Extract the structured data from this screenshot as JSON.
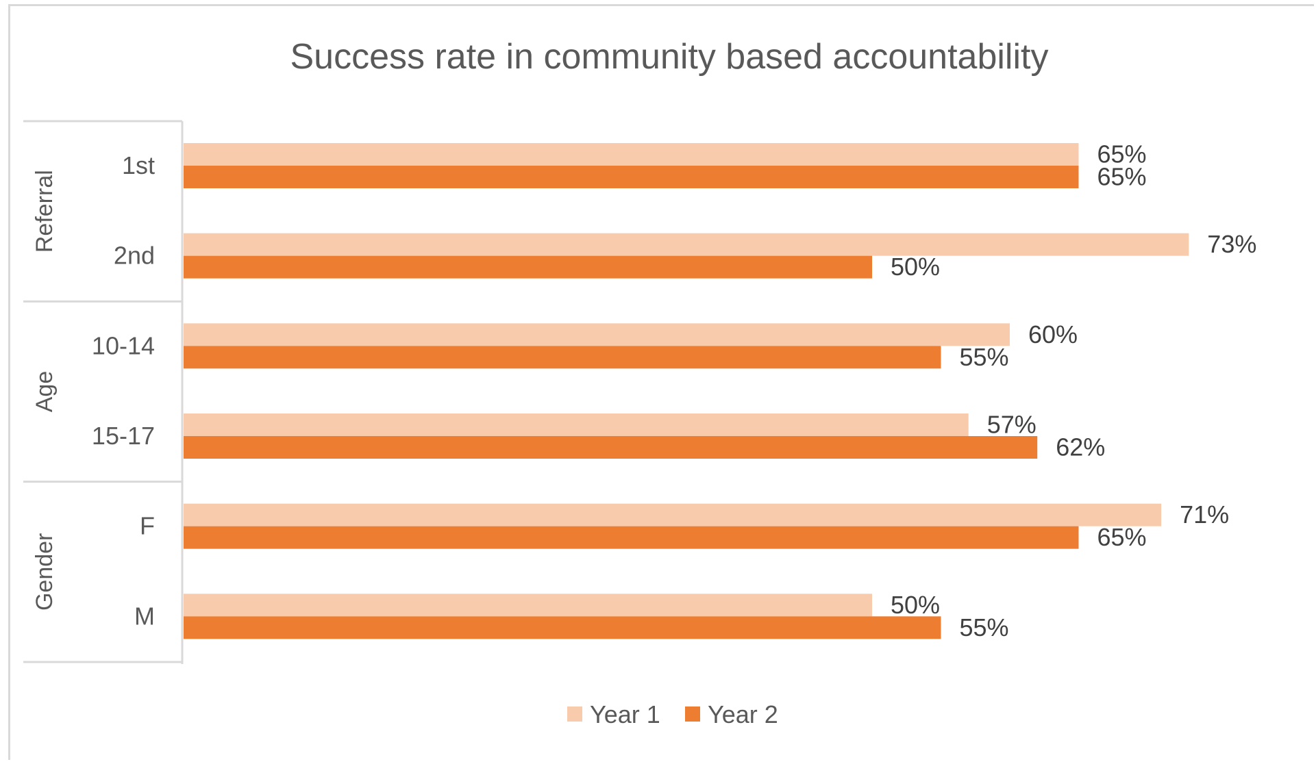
{
  "chart_data": {
    "type": "bar",
    "orientation": "horizontal",
    "title": "Success rate in community based accountability",
    "xlabel": "",
    "ylabel": "",
    "xlim": [
      0,
      80
    ],
    "grid": false,
    "legend_position": "bottom",
    "groups": [
      {
        "label": "Referral",
        "categories": [
          "1st",
          "2nd"
        ]
      },
      {
        "label": "Age",
        "categories": [
          "10-14",
          "15-17"
        ]
      },
      {
        "label": "Gender",
        "categories": [
          "F",
          "M"
        ]
      }
    ],
    "categories": [
      "1st",
      "2nd",
      "10-14",
      "15-17",
      "F",
      "M"
    ],
    "series": [
      {
        "name": "Year 1",
        "color": "#f8cbad",
        "values": [
          65,
          73,
          60,
          57,
          71,
          50
        ],
        "labels": [
          "65%",
          "73%",
          "60%",
          "57%",
          "71%",
          "50%"
        ]
      },
      {
        "name": "Year 2",
        "color": "#ed7d31",
        "values": [
          65,
          50,
          55,
          62,
          65,
          55
        ],
        "labels": [
          "65%",
          "50%",
          "55%",
          "62%",
          "65%",
          "55%"
        ]
      }
    ]
  }
}
